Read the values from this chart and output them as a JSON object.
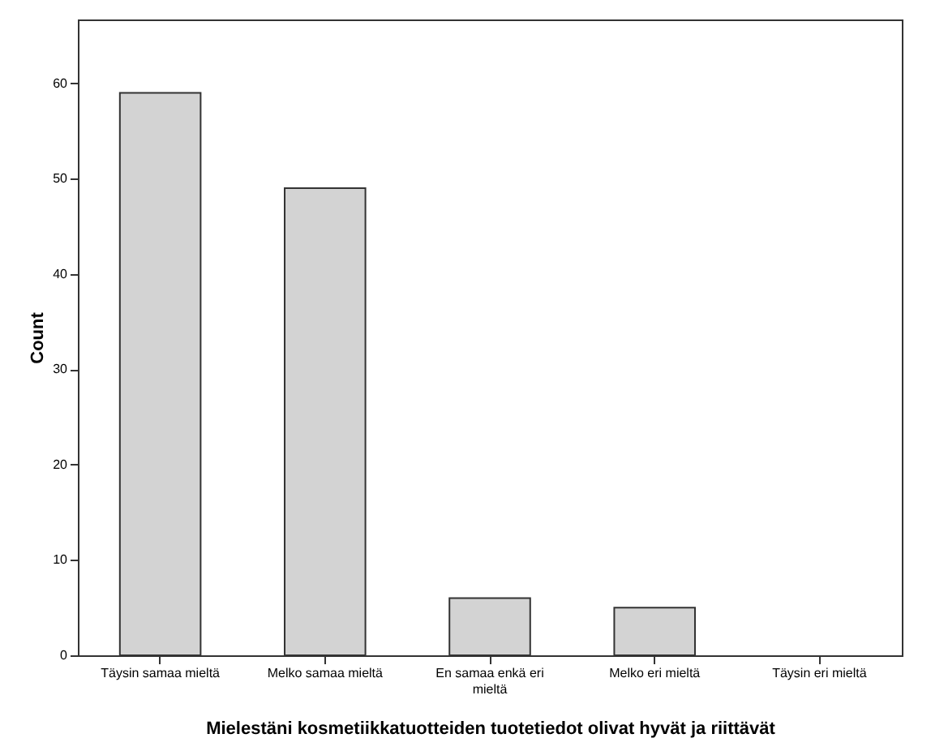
{
  "chart_data": {
    "type": "bar",
    "xlabel": "Mielestäni kosmetiikkatuotteiden tuotetiedot olivat hyvät ja riittävät",
    "ylabel": "Count",
    "categories": [
      "Täysin samaa mieltä",
      "Melko samaa mieltä",
      "En samaa enkä eri mieltä",
      "Melko eri mieltä",
      "Täysin eri mieltä"
    ],
    "values": [
      59,
      49,
      6,
      5,
      0
    ],
    "color": "#d3d3d3",
    "ylim": [
      0,
      66.7
    ],
    "yticks": [
      0,
      10,
      20,
      30,
      40,
      50,
      60
    ],
    "grid": false
  }
}
